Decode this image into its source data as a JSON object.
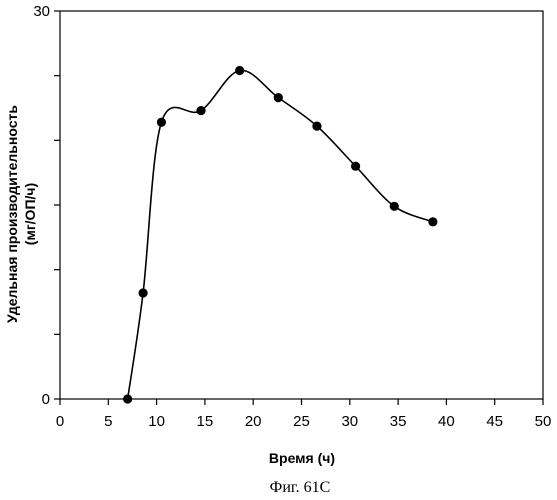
{
  "chart_data": {
    "type": "line",
    "xlabel": "Время (ч)",
    "ylabel_line1": "Удельная производительность",
    "ylabel_line2": "(мг/ОП/ч)",
    "caption": "Фиг. 61С",
    "xlim": [
      0,
      50
    ],
    "ylim": [
      0,
      30
    ],
    "x_ticks": [
      0,
      5,
      10,
      15,
      20,
      25,
      30,
      35,
      40,
      45,
      50
    ],
    "y_tick_labels": [
      0,
      30
    ],
    "y_minor_ticks": [
      5,
      10,
      15,
      20,
      25
    ],
    "grid": false,
    "line_style": "smoothed",
    "marker": "circle",
    "series": [
      {
        "x": [
          7.0,
          8.6,
          10.5,
          14.6,
          18.6,
          22.6,
          26.6,
          30.6,
          34.6,
          38.6
        ],
        "y": [
          0.0,
          8.2,
          21.4,
          22.3,
          25.4,
          23.3,
          21.1,
          18.0,
          14.9,
          13.7
        ]
      }
    ]
  }
}
